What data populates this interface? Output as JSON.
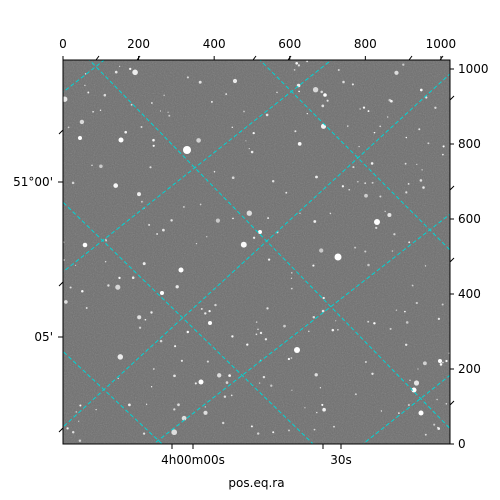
{
  "chart_data": {
    "type": "image",
    "pixel_axes": {
      "x_range": [
        0,
        1024
      ],
      "y_range": [
        0,
        1024
      ],
      "top_ticks": [
        "0",
        "200",
        "400",
        "600",
        "800",
        "1000"
      ],
      "top_tick_values": [
        0,
        200,
        400,
        600,
        800,
        1000
      ],
      "right_ticks": [
        "0",
        "200",
        "400",
        "600",
        "800",
        "1000"
      ],
      "right_tick_values": [
        0,
        200,
        400,
        600,
        800,
        1000
      ]
    },
    "world_axes": {
      "xlabel": "pos.eq.ra",
      "ylabel": "",
      "ra_ticks": [
        "4h00m00s",
        "30s"
      ],
      "dec_ticks": [
        "51°00'",
        "05'"
      ]
    },
    "grid": true,
    "grid_color": "#00d5d5",
    "background": "grayscale star field"
  }
}
